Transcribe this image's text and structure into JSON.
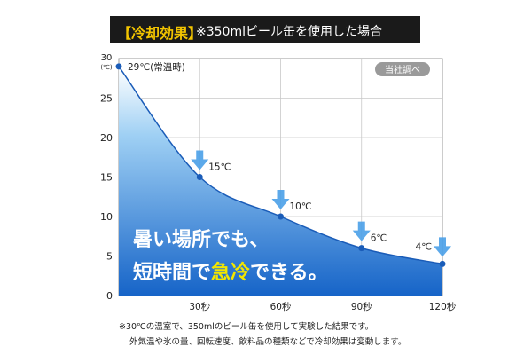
{
  "header": {
    "tag": "【冷却効果】",
    "subtitle": "※350mlビール缶を使用した場合"
  },
  "badge": "当社調べ",
  "headline": {
    "line1": "暑い場所でも、",
    "line2_part1": "短時間で",
    "line2_emphasis": "急冷",
    "line2_part2": "できる。"
  },
  "footnotes": [
    "※30℃の温室で、350mlのビール缶を使用して実験した結果です。",
    "外気温や氷の量、回転速度、飲料品の種類などで冷却効果は変動します。"
  ],
  "colors": {
    "area_top": "#e8f4fc",
    "area_bottom": "#1a6fd0",
    "line": "#1a5cb8",
    "arrow": "#4aa0e8",
    "headline_emphasis": "#f2e600",
    "title_bg": "#1a1a1a",
    "title_tag": "#f2c400"
  },
  "chart_data": {
    "type": "area",
    "y_unit_label": "(℃)",
    "y_ticks": [
      "0",
      "5",
      "10",
      "15",
      "20",
      "25",
      "30"
    ],
    "x_ticks": [
      "30秒",
      "60秒",
      "90秒",
      "120秒"
    ],
    "x_tick_values": [
      30,
      60,
      90,
      120
    ],
    "ylim": [
      0,
      30
    ],
    "xlim": [
      0,
      120
    ],
    "grid": true,
    "points": [
      {
        "x": 0,
        "y": 29,
        "label": "29℃(常温時)"
      },
      {
        "x": 30,
        "y": 15,
        "label": "15℃"
      },
      {
        "x": 60,
        "y": 10,
        "label": "10℃"
      },
      {
        "x": 90,
        "y": 6,
        "label": "6℃"
      },
      {
        "x": 120,
        "y": 4,
        "label": "4℃"
      }
    ]
  }
}
